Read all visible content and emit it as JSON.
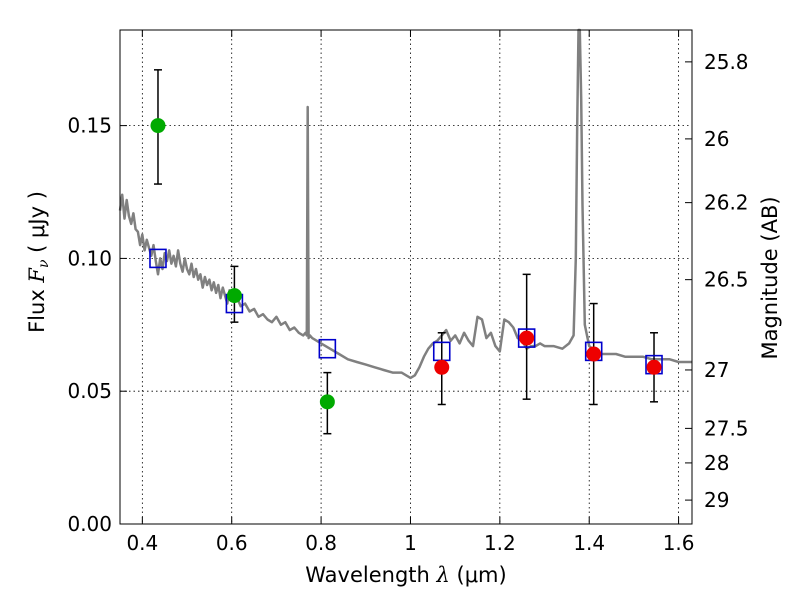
{
  "chart_data": {
    "type": "scatter",
    "xlabel": {
      "prefix": "Wavelength  ",
      "symbol": "λ",
      "unit": " (μm)"
    },
    "ylabel": {
      "prefix": "Flux  ",
      "symbol": "F",
      "subscript": "ν",
      "unit": "  ( μJy )"
    },
    "y2label": "Magnitude (AB)",
    "xlim": [
      0.35,
      1.63
    ],
    "ylim": [
      0.0,
      0.186
    ],
    "xticks": [
      0.4,
      0.6,
      0.8,
      1.0,
      1.2,
      1.4,
      1.6
    ],
    "xtick_labels": [
      "0.4",
      "0.6",
      "0.8",
      "1",
      "1.2",
      "1.4",
      "1.6"
    ],
    "yticks": [
      0.0,
      0.05,
      0.1,
      0.15
    ],
    "ytick_labels": [
      "0.00",
      "0.05",
      "0.10",
      "0.15"
    ],
    "y2ticks": [
      {
        "label": "25.8",
        "flux": 0.174
      },
      {
        "label": "26",
        "flux": 0.145
      },
      {
        "label": "26.2",
        "flux": 0.121
      },
      {
        "label": "26.5",
        "flux": 0.092
      },
      {
        "label": "27",
        "flux": 0.058
      },
      {
        "label": "27.5",
        "flux": 0.036
      },
      {
        "label": "28",
        "flux": 0.023
      },
      {
        "label": "29",
        "flux": 0.009
      }
    ],
    "grid": true,
    "colors": {
      "model": "#808080",
      "green_points": "#00aa00",
      "red_points": "#ee0000",
      "boxes": "#0000cc",
      "errorbars": "#000000"
    },
    "series": [
      {
        "marker": "circle-green",
        "x": [
          0.435,
          0.606,
          0.814
        ],
        "y": [
          0.15,
          0.086,
          0.046
        ],
        "yerr_low": [
          0.128,
          0.076,
          0.034
        ],
        "yerr_high": [
          0.171,
          0.097,
          0.057
        ]
      },
      {
        "marker": "circle-red",
        "x": [
          1.07,
          1.26,
          1.41,
          1.545
        ],
        "y": [
          0.059,
          0.07,
          0.064,
          0.059
        ],
        "yerr_low": [
          0.045,
          0.047,
          0.045,
          0.046
        ],
        "yerr_high": [
          0.072,
          0.094,
          0.083,
          0.072
        ]
      },
      {
        "marker": "square-blue",
        "x": [
          0.435,
          0.606,
          0.814,
          1.07,
          1.26,
          1.41,
          1.545
        ],
        "y": [
          0.1,
          0.083,
          0.066,
          0.065,
          0.07,
          0.065,
          0.06
        ]
      },
      {
        "marker": "line-gray",
        "x": [
          0.35,
          0.355,
          0.36,
          0.365,
          0.37,
          0.375,
          0.38,
          0.385,
          0.39,
          0.395,
          0.4,
          0.405,
          0.41,
          0.415,
          0.42,
          0.425,
          0.43,
          0.435,
          0.44,
          0.445,
          0.45,
          0.455,
          0.46,
          0.465,
          0.47,
          0.475,
          0.48,
          0.485,
          0.49,
          0.495,
          0.5,
          0.505,
          0.51,
          0.515,
          0.52,
          0.525,
          0.53,
          0.535,
          0.54,
          0.545,
          0.55,
          0.555,
          0.56,
          0.565,
          0.57,
          0.575,
          0.58,
          0.585,
          0.59,
          0.595,
          0.6,
          0.61,
          0.62,
          0.63,
          0.64,
          0.65,
          0.66,
          0.67,
          0.68,
          0.69,
          0.7,
          0.71,
          0.72,
          0.73,
          0.74,
          0.75,
          0.76,
          0.765,
          0.768,
          0.77,
          0.772,
          0.775,
          0.78,
          0.79,
          0.8,
          0.82,
          0.84,
          0.86,
          0.88,
          0.9,
          0.92,
          0.94,
          0.96,
          0.98,
          1.0,
          1.01,
          1.02,
          1.03,
          1.04,
          1.05,
          1.06,
          1.07,
          1.08,
          1.09,
          1.1,
          1.11,
          1.12,
          1.13,
          1.14,
          1.15,
          1.16,
          1.17,
          1.18,
          1.19,
          1.2,
          1.21,
          1.22,
          1.23,
          1.24,
          1.25,
          1.26,
          1.27,
          1.28,
          1.29,
          1.3,
          1.32,
          1.34,
          1.355,
          1.365,
          1.37,
          1.373,
          1.376,
          1.379,
          1.382,
          1.385,
          1.39,
          1.4,
          1.42,
          1.44,
          1.46,
          1.48,
          1.5,
          1.52,
          1.54,
          1.56,
          1.58,
          1.6,
          1.63
        ],
        "y": [
          0.118,
          0.124,
          0.115,
          0.122,
          0.116,
          0.113,
          0.117,
          0.111,
          0.11,
          0.105,
          0.109,
          0.103,
          0.107,
          0.104,
          0.101,
          0.105,
          0.099,
          0.094,
          0.1,
          0.096,
          0.102,
          0.099,
          0.103,
          0.098,
          0.101,
          0.097,
          0.103,
          0.098,
          0.095,
          0.1,
          0.096,
          0.094,
          0.098,
          0.093,
          0.096,
          0.092,
          0.094,
          0.089,
          0.093,
          0.09,
          0.092,
          0.088,
          0.091,
          0.087,
          0.09,
          0.085,
          0.089,
          0.086,
          0.083,
          0.088,
          0.085,
          0.086,
          0.082,
          0.083,
          0.08,
          0.081,
          0.078,
          0.079,
          0.077,
          0.076,
          0.078,
          0.075,
          0.076,
          0.073,
          0.074,
          0.072,
          0.071,
          0.072,
          0.071,
          0.157,
          0.07,
          0.071,
          0.07,
          0.069,
          0.068,
          0.066,
          0.064,
          0.062,
          0.061,
          0.06,
          0.059,
          0.058,
          0.057,
          0.057,
          0.055,
          0.056,
          0.059,
          0.063,
          0.066,
          0.068,
          0.069,
          0.071,
          0.073,
          0.069,
          0.071,
          0.068,
          0.072,
          0.069,
          0.067,
          0.078,
          0.077,
          0.07,
          0.072,
          0.067,
          0.065,
          0.077,
          0.076,
          0.074,
          0.07,
          0.069,
          0.066,
          0.067,
          0.067,
          0.068,
          0.067,
          0.067,
          0.066,
          0.068,
          0.071,
          0.1,
          0.15,
          0.186,
          0.19,
          0.16,
          0.12,
          0.075,
          0.067,
          0.064,
          0.064,
          0.064,
          0.063,
          0.063,
          0.063,
          0.062,
          0.062,
          0.062,
          0.061,
          0.061
        ]
      }
    ]
  }
}
